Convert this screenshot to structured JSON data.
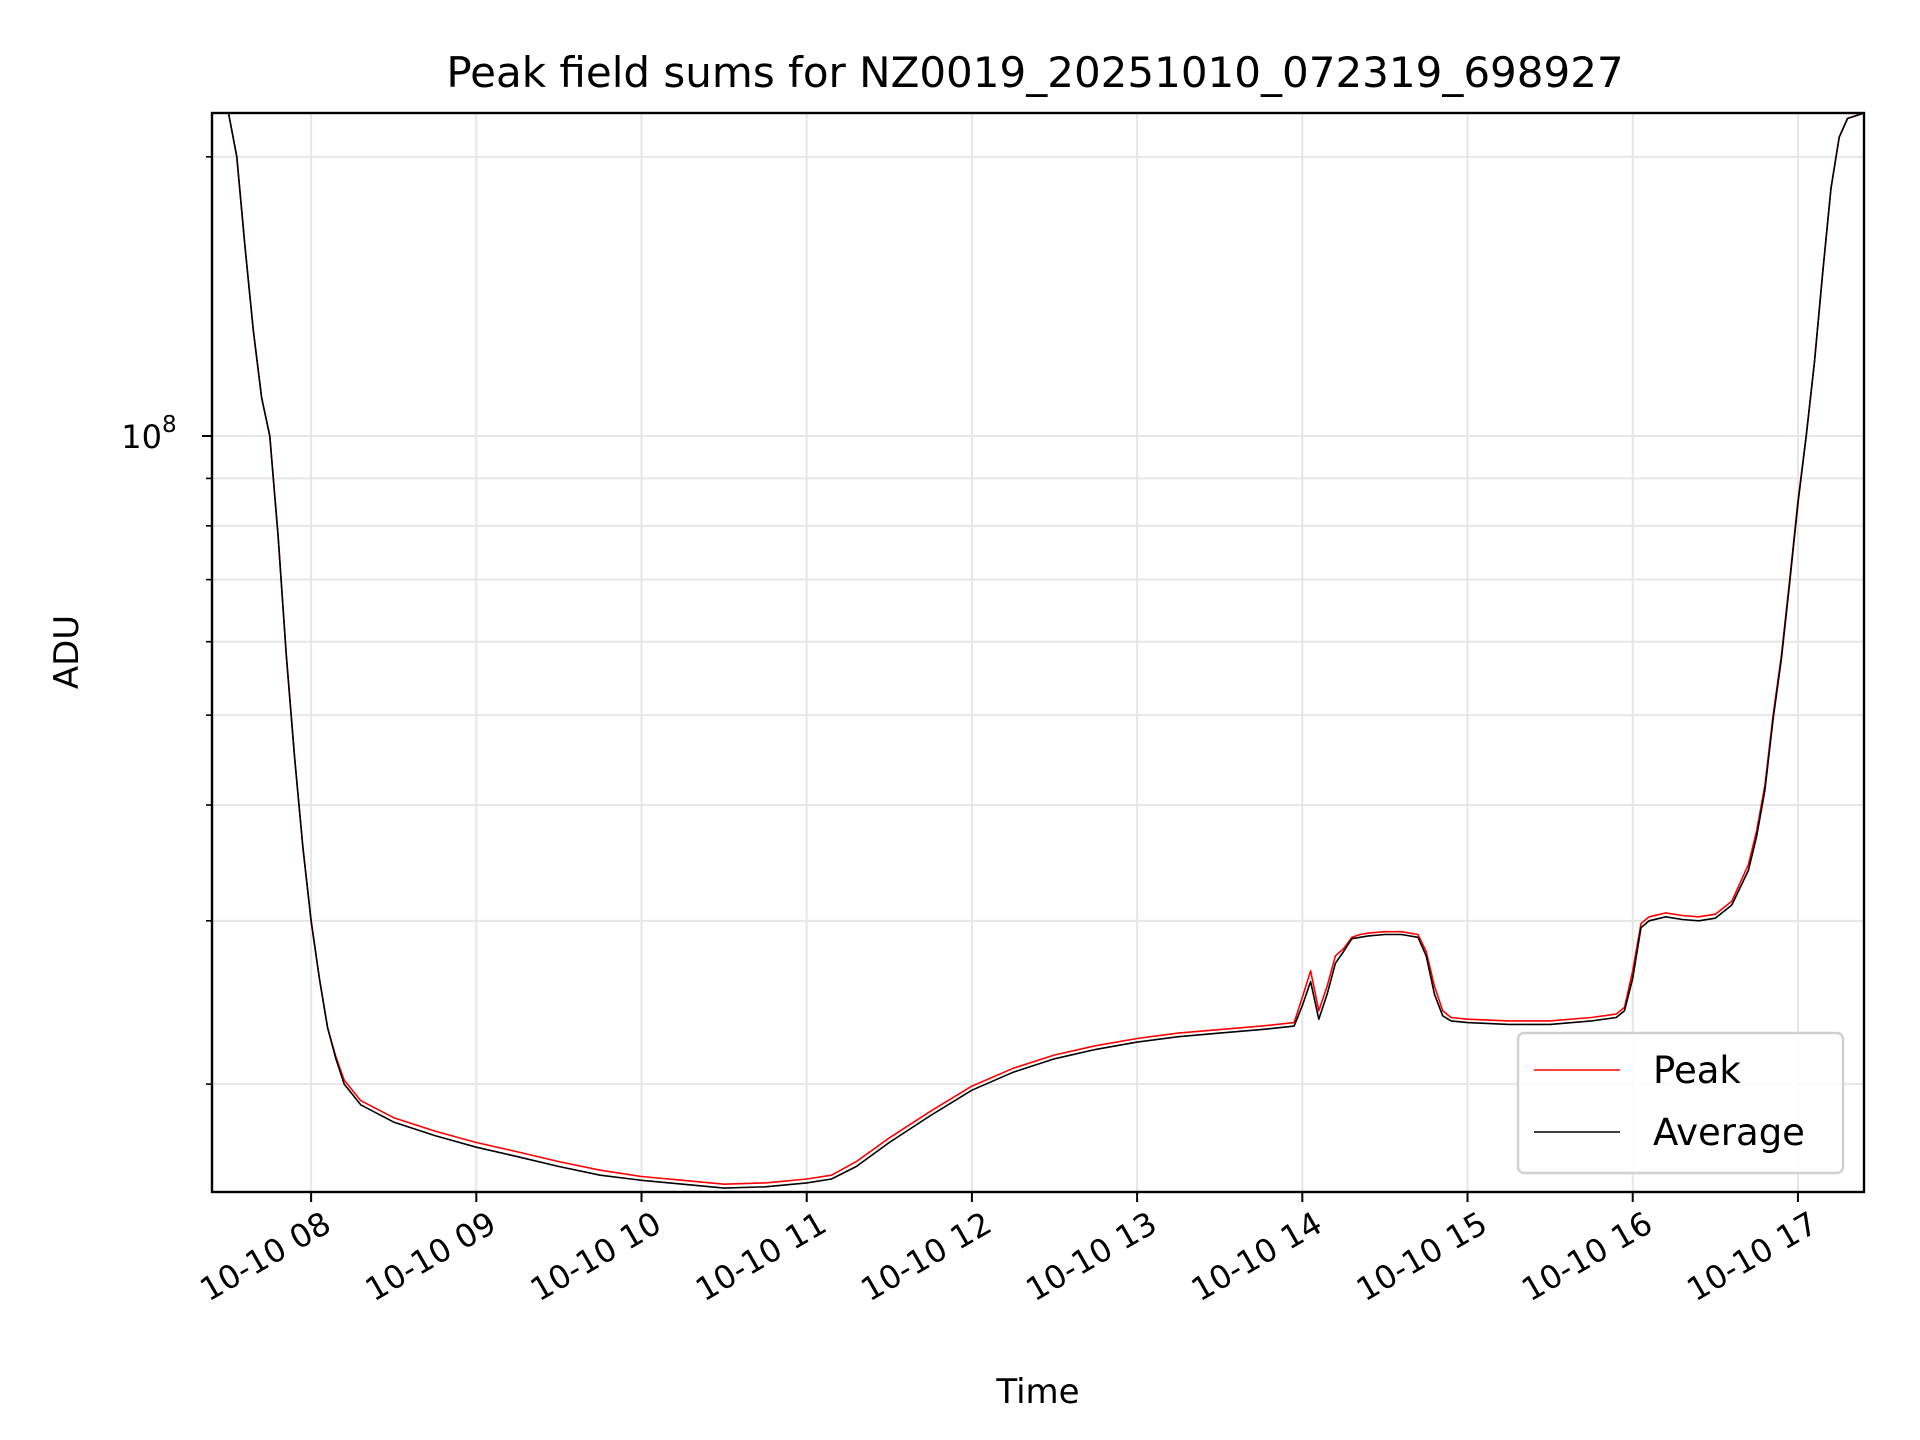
{
  "chart_data": {
    "type": "line",
    "title": "Peak field sums for NZ0019_20251010_072319_698927",
    "xlabel": "Time",
    "ylabel": "ADU",
    "y_scale": "log",
    "xlim": [
      7.4,
      17.4
    ],
    "ylim": [
      15300000,
      223000000
    ],
    "x_ticks": [
      8,
      9,
      10,
      11,
      12,
      13,
      14,
      15,
      16,
      17
    ],
    "x_tick_labels": [
      "10-10 08",
      "10-10 09",
      "10-10 10",
      "10-10 11",
      "10-10 12",
      "10-10 13",
      "10-10 14",
      "10-10 15",
      "10-10 16",
      "10-10 17"
    ],
    "y_major_ticks": [
      100000000
    ],
    "y_tick_labels": [
      {
        "base": "10",
        "exp": "8"
      }
    ],
    "y_minor_ticks": [
      20000000,
      30000000,
      40000000,
      50000000,
      60000000,
      70000000,
      80000000,
      90000000,
      200000000
    ],
    "grid": true,
    "legend_position": "lower-right",
    "series": [
      {
        "name": "Peak",
        "color": "#ff0000",
        "x": [
          7.4,
          7.5,
          7.55,
          7.6,
          7.65,
          7.7,
          7.75,
          7.8,
          7.85,
          7.9,
          7.95,
          8.0,
          8.05,
          8.1,
          8.15,
          8.2,
          8.3,
          8.5,
          8.75,
          9.0,
          9.25,
          9.5,
          9.75,
          10.0,
          10.25,
          10.5,
          10.75,
          11.0,
          11.15,
          11.3,
          11.5,
          11.75,
          12.0,
          12.25,
          12.5,
          12.75,
          13.0,
          13.25,
          13.5,
          13.75,
          13.95,
          14.0,
          14.05,
          14.1,
          14.15,
          14.2,
          14.25,
          14.3,
          14.35,
          14.4,
          14.5,
          14.6,
          14.7,
          14.75,
          14.8,
          14.85,
          14.9,
          15.0,
          15.25,
          15.5,
          15.75,
          15.9,
          15.95,
          16.0,
          16.05,
          16.1,
          16.2,
          16.3,
          16.4,
          16.5,
          16.6,
          16.7,
          16.75,
          16.8,
          16.85,
          16.9,
          16.95,
          17.0,
          17.05,
          17.1,
          17.15,
          17.2,
          17.25,
          17.3,
          17.4
        ],
        "values": [
          223000000,
          223000000,
          200000000,
          160000000,
          130000000,
          110000000,
          100000000,
          78000000,
          58000000,
          45000000,
          36000000,
          30000000,
          26000000,
          23000000,
          21400000,
          20200000,
          19200000,
          18400000,
          17800000,
          17300000,
          16900000,
          16500000,
          16150000,
          15900000,
          15750000,
          15600000,
          15650000,
          15800000,
          15950000,
          16500000,
          17500000,
          18700000,
          19900000,
          20800000,
          21500000,
          22000000,
          22400000,
          22700000,
          22900000,
          23100000,
          23300000,
          24800000,
          26500000,
          24000000,
          25500000,
          27500000,
          28000000,
          28800000,
          29000000,
          29100000,
          29200000,
          29200000,
          29000000,
          27800000,
          25500000,
          24000000,
          23600000,
          23500000,
          23400000,
          23400000,
          23600000,
          23800000,
          24200000,
          26500000,
          29800000,
          30300000,
          30600000,
          30400000,
          30300000,
          30500000,
          31500000,
          34500000,
          37500000,
          42000000,
          50000000,
          58000000,
          70000000,
          85000000,
          100000000,
          120000000,
          150000000,
          185000000,
          210000000,
          220000000,
          223000000
        ]
      },
      {
        "name": "Average",
        "color": "#000000",
        "x": [
          7.4,
          7.5,
          7.55,
          7.6,
          7.65,
          7.7,
          7.75,
          7.8,
          7.85,
          7.9,
          7.95,
          8.0,
          8.05,
          8.1,
          8.15,
          8.2,
          8.3,
          8.5,
          8.75,
          9.0,
          9.25,
          9.5,
          9.75,
          10.0,
          10.25,
          10.5,
          10.75,
          11.0,
          11.15,
          11.3,
          11.5,
          11.75,
          12.0,
          12.25,
          12.5,
          12.75,
          13.0,
          13.25,
          13.5,
          13.75,
          13.95,
          14.0,
          14.05,
          14.1,
          14.15,
          14.2,
          14.25,
          14.3,
          14.35,
          14.4,
          14.5,
          14.6,
          14.7,
          14.75,
          14.8,
          14.85,
          14.9,
          15.0,
          15.25,
          15.5,
          15.75,
          15.9,
          15.95,
          16.0,
          16.05,
          16.1,
          16.2,
          16.3,
          16.4,
          16.5,
          16.6,
          16.7,
          16.75,
          16.8,
          16.85,
          16.9,
          16.95,
          17.0,
          17.05,
          17.1,
          17.15,
          17.2,
          17.25,
          17.3,
          17.4
        ],
        "values": [
          223000000,
          223000000,
          200000000,
          160000000,
          130000000,
          110000000,
          100000000,
          78000000,
          58000000,
          45000000,
          36000000,
          30000000,
          26000000,
          23000000,
          21300000,
          20000000,
          19000000,
          18200000,
          17600000,
          17100000,
          16700000,
          16300000,
          15950000,
          15750000,
          15600000,
          15450000,
          15500000,
          15650000,
          15800000,
          16300000,
          17300000,
          18500000,
          19700000,
          20600000,
          21300000,
          21800000,
          22200000,
          22500000,
          22700000,
          22900000,
          23100000,
          24300000,
          25800000,
          23500000,
          25000000,
          27000000,
          27800000,
          28700000,
          28800000,
          28900000,
          29000000,
          29000000,
          28800000,
          27500000,
          25000000,
          23700000,
          23400000,
          23300000,
          23200000,
          23200000,
          23400000,
          23600000,
          24000000,
          26000000,
          29500000,
          30000000,
          30300000,
          30100000,
          30000000,
          30200000,
          31200000,
          34000000,
          37000000,
          41500000,
          49500000,
          57500000,
          69500000,
          84500000,
          100000000,
          120000000,
          150000000,
          185000000,
          210000000,
          220000000,
          223000000
        ]
      }
    ]
  }
}
